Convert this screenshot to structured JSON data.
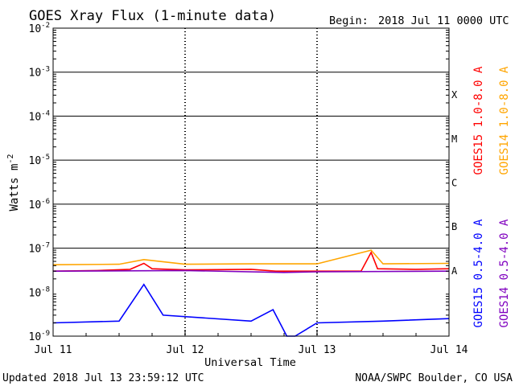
{
  "chart_data": {
    "type": "line",
    "title": "GOES Xray Flux (1-minute data)",
    "begin_label": "Begin:",
    "begin_value": "2018 Jul 11 0000 UTC",
    "xlabel": "Universal Time",
    "ylabel": "Watts m",
    "ylabel_exponent": "-2",
    "yscale": "log",
    "ylim": [
      1e-09,
      0.01
    ],
    "y_ticks": [
      {
        "value": 0.01,
        "base": "10",
        "exp": "-2"
      },
      {
        "value": 0.001,
        "base": "10",
        "exp": "-3"
      },
      {
        "value": 0.0001,
        "base": "10",
        "exp": "-4"
      },
      {
        "value": 1e-05,
        "base": "10",
        "exp": "-5"
      },
      {
        "value": 1e-06,
        "base": "10",
        "exp": "-6"
      },
      {
        "value": 1e-07,
        "base": "10",
        "exp": "-7"
      },
      {
        "value": 1e-08,
        "base": "10",
        "exp": "-8"
      },
      {
        "value": 1e-09,
        "base": "10",
        "exp": "-9"
      }
    ],
    "x_ticks": [
      "Jul 11",
      "Jul 12",
      "Jul 13",
      "Jul 14"
    ],
    "xlim": [
      "2018-07-11T00:00Z",
      "2018-07-14T00:00Z"
    ],
    "flare_classes": [
      {
        "label": "X",
        "value": 0.0001
      },
      {
        "label": "M",
        "value": 1e-05
      },
      {
        "label": "C",
        "value": 1e-06
      },
      {
        "label": "B",
        "value": 1e-07
      },
      {
        "label": "A",
        "value": 1e-08
      }
    ],
    "grid": "horizontal at each decade from 1e-7 to 1e-2, dotted vertical at day boundaries",
    "legend_placement": "right, vertical",
    "series": [
      {
        "name": "GOES15 1.0-8.0 A",
        "color": "#ff0000",
        "points": [
          [
            "2018-07-11T00:00Z",
            3e-08
          ],
          [
            "2018-07-11T08:00Z",
            3.1e-08
          ],
          [
            "2018-07-11T14:00Z",
            3.3e-08
          ],
          [
            "2018-07-11T16:30Z",
            4.5e-08
          ],
          [
            "2018-07-11T18:00Z",
            3.4e-08
          ],
          [
            "2018-07-12T00:00Z",
            3.2e-08
          ],
          [
            "2018-07-12T12:00Z",
            3.3e-08
          ],
          [
            "2018-07-12T16:30Z",
            3e-08
          ],
          [
            "2018-07-12T20:00Z",
            3e-08
          ],
          [
            "2018-07-13T00:00Z",
            3e-08
          ],
          [
            "2018-07-13T08:00Z",
            3e-08
          ],
          [
            "2018-07-13T09:50Z",
            8e-08
          ],
          [
            "2018-07-13T11:00Z",
            3.4e-08
          ],
          [
            "2018-07-13T18:00Z",
            3.3e-08
          ],
          [
            "2018-07-14T00:00Z",
            3.4e-08
          ]
        ]
      },
      {
        "name": "GOES14 1.0-8.0 A",
        "color": "#ffa500",
        "points": [
          [
            "2018-07-11T00:00Z",
            4.2e-08
          ],
          [
            "2018-07-11T12:00Z",
            4.3e-08
          ],
          [
            "2018-07-11T16:30Z",
            5.5e-08
          ],
          [
            "2018-07-12T00:00Z",
            4.3e-08
          ],
          [
            "2018-07-12T12:00Z",
            4.4e-08
          ],
          [
            "2018-07-13T00:00Z",
            4.4e-08
          ],
          [
            "2018-07-13T09:50Z",
            9e-08
          ],
          [
            "2018-07-13T12:00Z",
            4.4e-08
          ],
          [
            "2018-07-14T00:00Z",
            4.5e-08
          ]
        ]
      },
      {
        "name": "GOES15 0.5-4.0 A",
        "color": "#0000ff",
        "points": [
          [
            "2018-07-11T00:00Z",
            2e-09
          ],
          [
            "2018-07-11T12:00Z",
            2.2e-09
          ],
          [
            "2018-07-11T16:30Z",
            1.5e-08
          ],
          [
            "2018-07-11T20:00Z",
            3e-09
          ],
          [
            "2018-07-12T12:00Z",
            2.2e-09
          ],
          [
            "2018-07-12T16:00Z",
            4e-09
          ],
          [
            "2018-07-12T18:30Z",
            1e-09
          ],
          [
            "2018-07-12T20:00Z",
            1e-09
          ],
          [
            "2018-07-13T00:00Z",
            2e-09
          ],
          [
            "2018-07-13T12:00Z",
            2.2e-09
          ],
          [
            "2018-07-14T00:00Z",
            2.5e-09
          ]
        ]
      },
      {
        "name": "GOES14 0.5-4.0 A",
        "color": "#7f00bf",
        "points": [
          [
            "2018-07-11T00:00Z",
            3e-08
          ],
          [
            "2018-07-12T00:00Z",
            3.1e-08
          ],
          [
            "2018-07-12T18:00Z",
            2.8e-08
          ],
          [
            "2018-07-13T00:00Z",
            2.9e-08
          ],
          [
            "2018-07-14T00:00Z",
            3e-08
          ]
        ]
      }
    ]
  },
  "footer": {
    "updated": "Updated 2018 Jul 13 23:59:12 UTC",
    "credit": "NOAA/SWPC Boulder, CO USA"
  }
}
